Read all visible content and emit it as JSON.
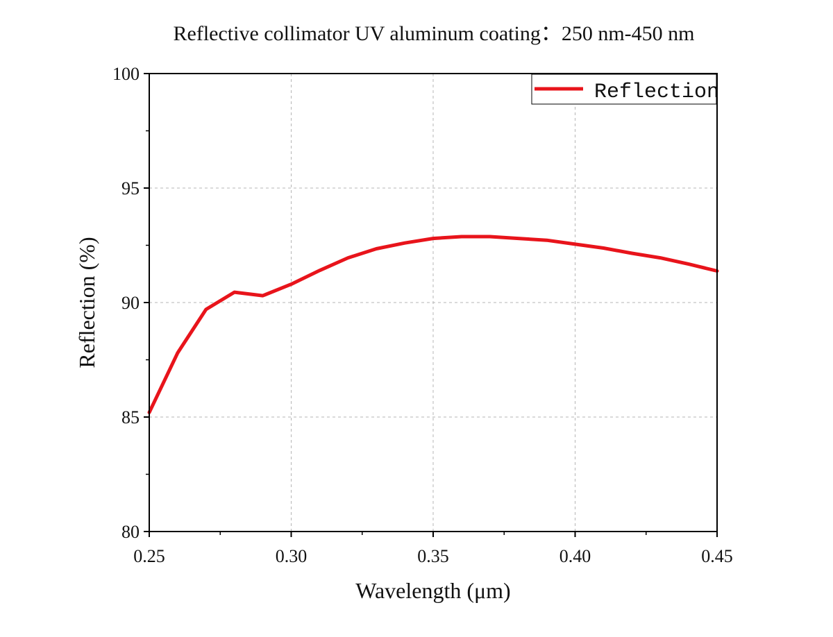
{
  "chart_data": {
    "type": "line",
    "title": "Reflective collimator UV aluminum coating：250 nm-450 nm",
    "xlabel": "Wavelength (μm)",
    "ylabel": "Reflection (%)",
    "xlim": [
      0.25,
      0.45
    ],
    "ylim": [
      80,
      100
    ],
    "xticks": [
      0.25,
      0.3,
      0.35,
      0.4,
      0.45
    ],
    "xtick_labels": [
      "0.25",
      "0.30",
      "0.35",
      "0.40",
      "0.45"
    ],
    "yticks": [
      80,
      85,
      90,
      95,
      100
    ],
    "ytick_labels": [
      "80",
      "85",
      "90",
      "95",
      "100"
    ],
    "grid": true,
    "legend_position": "top-right",
    "series": [
      {
        "name": "Reflection",
        "color": "#e8141b",
        "x": [
          0.25,
          0.26,
          0.27,
          0.28,
          0.29,
          0.3,
          0.31,
          0.32,
          0.33,
          0.34,
          0.35,
          0.36,
          0.37,
          0.38,
          0.39,
          0.4,
          0.41,
          0.42,
          0.43,
          0.44,
          0.45
        ],
        "y": [
          85.2,
          87.8,
          89.7,
          90.45,
          90.3,
          90.8,
          91.4,
          91.95,
          92.35,
          92.6,
          92.8,
          92.88,
          92.88,
          92.8,
          92.72,
          92.55,
          92.38,
          92.15,
          91.95,
          91.68,
          91.38
        ]
      }
    ]
  }
}
